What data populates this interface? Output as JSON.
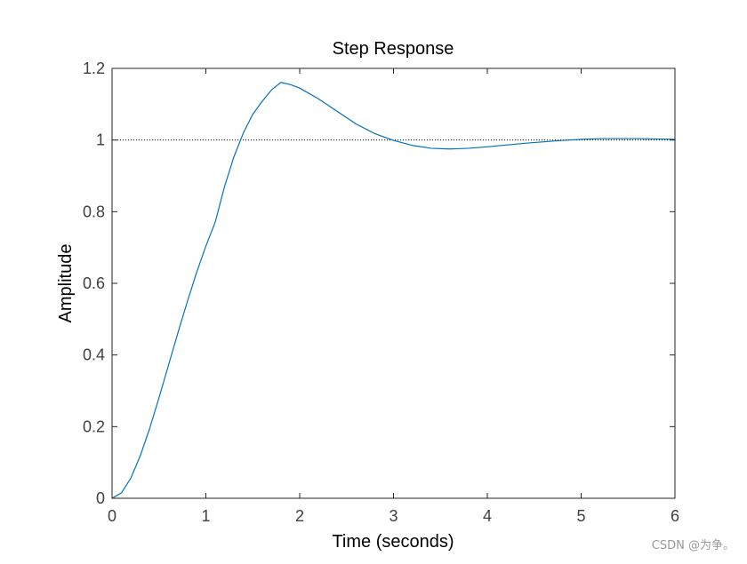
{
  "chart_data": {
    "type": "line",
    "title": "Step Response",
    "xlabel": "Time (seconds)",
    "ylabel": "Amplitude",
    "xlim": [
      0,
      6
    ],
    "ylim": [
      0,
      1.2
    ],
    "xticks": [
      0,
      1,
      2,
      3,
      4,
      5,
      6
    ],
    "yticks": [
      0,
      0.2,
      0.4,
      0.6,
      0.8,
      1,
      1.2
    ],
    "xtick_labels": [
      "0",
      "1",
      "2",
      "3",
      "4",
      "5",
      "6"
    ],
    "ytick_labels": [
      "0",
      "0.2",
      "0.4",
      "0.6",
      "0.8",
      "1",
      "1.2"
    ],
    "grid": false,
    "reference_line": {
      "y": 1,
      "style": "dotted",
      "color": "#000000"
    },
    "series": [
      {
        "color": "#0072bd",
        "x": [
          0,
          0.1,
          0.2,
          0.3,
          0.4,
          0.5,
          0.6,
          0.7,
          0.8,
          0.9,
          1.0,
          1.1,
          1.2,
          1.3,
          1.4,
          1.5,
          1.6,
          1.7,
          1.8,
          1.9,
          2.0,
          2.2,
          2.4,
          2.6,
          2.8,
          3.0,
          3.2,
          3.4,
          3.6,
          3.8,
          4.0,
          4.2,
          4.4,
          4.6,
          4.8,
          5.0,
          5.2,
          5.4,
          5.6,
          5.8,
          6.0
        ],
        "values": [
          0,
          0.015,
          0.056,
          0.118,
          0.194,
          0.28,
          0.37,
          0.46,
          0.547,
          0.629,
          0.704,
          0.771,
          0.871,
          0.954,
          1.02,
          1.072,
          1.108,
          1.14,
          1.161,
          1.155,
          1.145,
          1.115,
          1.08,
          1.045,
          1.018,
          0.999,
          0.985,
          0.977,
          0.975,
          0.977,
          0.981,
          0.986,
          0.991,
          0.995,
          0.999,
          1.002,
          1.004,
          1.004,
          1.004,
          1.003,
          1.002
        ]
      }
    ]
  },
  "watermark": "CSDN @为争。"
}
